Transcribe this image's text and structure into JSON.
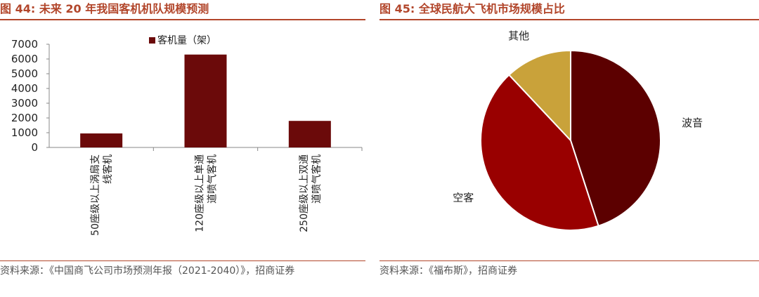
{
  "colors": {
    "title": "#b2462b",
    "bar": "#6b0a0a",
    "pie": [
      "#5c0000",
      "#990000",
      "#c9a23a"
    ]
  },
  "left": {
    "figure_label": "图 44:",
    "title": "未来 20 年我国客机机队规模预测",
    "source": "资料来源：《中国商飞公司市场预测年报（2021-2040）》，招商证券"
  },
  "right": {
    "figure_label": "图 45:",
    "title": "全球民航大飞机市场规模占比",
    "source": "资料来源：《福布斯》，招商证券"
  },
  "chart_data": [
    {
      "type": "bar",
      "legend": "客机量（架）",
      "legend_position": "top-center",
      "categories": [
        [
          "50座级以上涡扇支",
          "线客机"
        ],
        [
          "120座级以上单通",
          "道喷气客机"
        ],
        [
          "250座级以上双通",
          "道喷气客机"
        ]
      ],
      "series": [
        {
          "name": "客机量（架）",
          "values": [
            950,
            6300,
            1800
          ]
        }
      ],
      "ylim": [
        0,
        7000
      ],
      "yticks": [
        0,
        1000,
        2000,
        3000,
        4000,
        5000,
        6000,
        7000
      ],
      "grid": false
    },
    {
      "type": "pie",
      "slices": [
        {
          "label": "波音",
          "value": 45
        },
        {
          "label": "空客",
          "value": 43
        },
        {
          "label": "其他",
          "value": 12
        }
      ]
    }
  ]
}
